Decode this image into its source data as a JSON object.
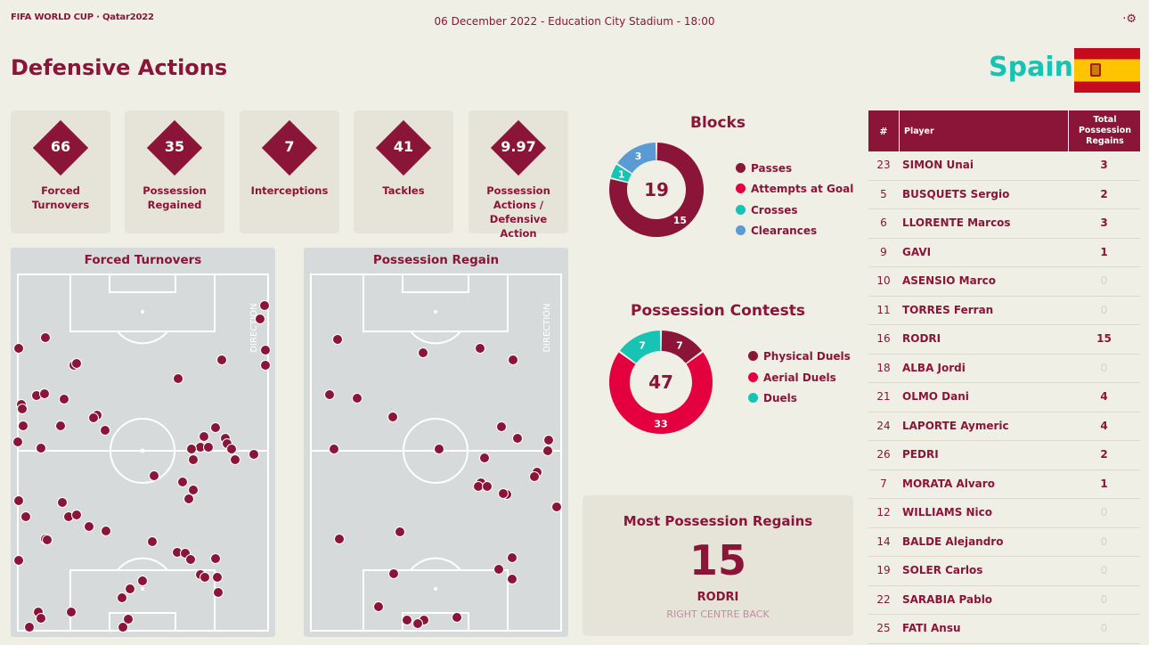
{
  "header": {
    "logo": "FIFA WORLD CUP · Qatar2022",
    "match_info": "06 December 2022 - Education City Stadium - 18:00",
    "page_title": "Defensive Actions",
    "team": "Spain",
    "settings_icon": "gear-icon"
  },
  "stats": [
    {
      "value": "66",
      "label": "Forced Turnovers"
    },
    {
      "value": "35",
      "label": "Possession Regained"
    },
    {
      "value": "7",
      "label": "Interceptions"
    },
    {
      "value": "41",
      "label": "Tackles"
    },
    {
      "value": "9.97",
      "label": "Possession Actions / Defensive Action"
    }
  ],
  "pitches": {
    "forced_turnovers": {
      "title": "Forced Turnovers",
      "direction": "DIRECTION"
    },
    "possession_regain": {
      "title": "Possession Regain",
      "direction": "DIRECTION"
    }
  },
  "blocks": {
    "title": "Blocks",
    "total": "19",
    "legend": [
      {
        "label": "Passes",
        "color": "#8a1538"
      },
      {
        "label": "Attempts at Goal",
        "color": "#e4003f"
      },
      {
        "label": "Crosses",
        "color": "#17c3b2"
      },
      {
        "label": "Clearances",
        "color": "#5a9bd5"
      }
    ],
    "segments": [
      {
        "label": "15",
        "value": 15,
        "color": "#8a1538"
      },
      {
        "label": "1",
        "value": 1,
        "color": "#17c3b2"
      },
      {
        "label": "3",
        "value": 3,
        "color": "#5a9bd5"
      }
    ]
  },
  "possession_contests": {
    "title": "Possession Contests",
    "total": "47",
    "legend": [
      {
        "label": "Physical Duels",
        "color": "#8a1538"
      },
      {
        "label": "Aerial Duels",
        "color": "#e4003f"
      },
      {
        "label": "Duels",
        "color": "#17c3b2"
      }
    ],
    "segments": [
      {
        "label": "7",
        "value": 7,
        "color": "#8a1538"
      },
      {
        "label": "33",
        "value": 33,
        "color": "#e4003f"
      },
      {
        "label": "7",
        "value": 7,
        "color": "#17c3b2"
      }
    ]
  },
  "most_possession_regains": {
    "title": "Most Possession Regains",
    "value": "15",
    "player": "RODRI",
    "position": "RIGHT CENTRE BACK"
  },
  "table": {
    "headers": {
      "num": "#",
      "player": "Player",
      "value": "Total Possession Regains"
    },
    "rows": [
      {
        "num": "23",
        "player": "SIMON Unai",
        "value": "3"
      },
      {
        "num": "5",
        "player": "BUSQUETS Sergio",
        "value": "2"
      },
      {
        "num": "6",
        "player": "LLORENTE Marcos",
        "value": "3"
      },
      {
        "num": "9",
        "player": "GAVI",
        "value": "1"
      },
      {
        "num": "10",
        "player": "ASENSIO Marco",
        "value": "0"
      },
      {
        "num": "11",
        "player": "TORRES Ferran",
        "value": "0"
      },
      {
        "num": "16",
        "player": "RODRI",
        "value": "15"
      },
      {
        "num": "18",
        "player": "ALBA Jordi",
        "value": "0"
      },
      {
        "num": "21",
        "player": "OLMO Dani",
        "value": "4"
      },
      {
        "num": "24",
        "player": "LAPORTE Aymeric",
        "value": "4"
      },
      {
        "num": "26",
        "player": "PEDRI",
        "value": "2"
      },
      {
        "num": "7",
        "player": "MORATA Alvaro",
        "value": "1"
      },
      {
        "num": "12",
        "player": "WILLIAMS Nico",
        "value": "0"
      },
      {
        "num": "14",
        "player": "BALDE Alejandro",
        "value": "0"
      },
      {
        "num": "19",
        "player": "SOLER Carlos",
        "value": "0"
      },
      {
        "num": "22",
        "player": "SARABIA Pablo",
        "value": "0"
      },
      {
        "num": "25",
        "player": "FATI Ansu",
        "value": "0"
      }
    ]
  }
}
